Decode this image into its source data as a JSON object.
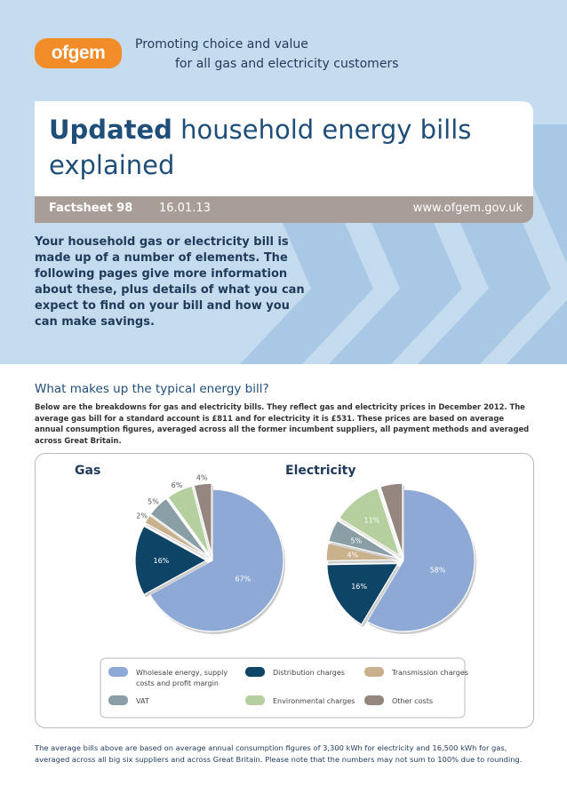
{
  "header": {
    "logo_text": "ofgem",
    "tagline_line1": "Promoting choice and value",
    "tagline_line2": "for all gas and electricity customers"
  },
  "title": {
    "bold": "Updated",
    "rest": " household energy bills explained"
  },
  "factsheet": {
    "label": "Factsheet 98",
    "date": "16.01.13",
    "url": "www.ofgem.gov.uk"
  },
  "intro": "Your household gas or electricity bill is made up of a number of elements. The following pages give more information about these, plus details of what you can expect to find on your bill and how you can make savings.",
  "section": {
    "heading": "What makes up the typical energy bill?",
    "body": "Below are the breakdowns for gas and electricity bills. They reflect gas and electricity prices in December 2012. The average gas bill for a standard account is £811 and for electricity it is £531. These prices are based on average annual consumption figures, averaged across all the former incumbent suppliers, all payment methods and averaged across Great Britain."
  },
  "colors": {
    "wholesale": "#8fa9d6",
    "distribution": "#0e4466",
    "transmission": "#c9b18c",
    "vat": "#8a9ea6",
    "environmental": "#b5cf9e",
    "other": "#958780",
    "hero_bg": "#c5dcef",
    "chevron": "#a9c8e6",
    "brand_orange": "#f28c28",
    "title_blue": "#1f4e79"
  },
  "chart_data": [
    {
      "type": "pie",
      "title": "Gas",
      "categories": [
        "Wholesale energy, supply costs and profit margin",
        "Distribution charges",
        "Transmission charges",
        "VAT",
        "Environmental charges",
        "Other costs"
      ],
      "values": [
        67,
        16,
        2,
        5,
        6,
        4
      ],
      "labels": [
        "67%",
        "16%",
        "2%",
        "5%",
        "6%",
        "4%"
      ]
    },
    {
      "type": "pie",
      "title": "Electricity",
      "categories": [
        "Wholesale energy, supply costs and profit margin",
        "Distribution charges",
        "Transmission charges",
        "VAT",
        "Environmental charges",
        "Other costs"
      ],
      "values": [
        58,
        16,
        4,
        5,
        11,
        5
      ],
      "labels": [
        "58%",
        "16%",
        "4%",
        "5%",
        "11%",
        "5%"
      ]
    }
  ],
  "legend": [
    {
      "key": "wholesale",
      "label_line1": "Wholesale energy, supply",
      "label_line2": "costs and profit margin"
    },
    {
      "key": "distribution",
      "label_line1": "Distribution charges",
      "label_line2": ""
    },
    {
      "key": "transmission",
      "label_line1": "Transmission charges",
      "label_line2": ""
    },
    {
      "key": "vat",
      "label_line1": "VAT",
      "label_line2": ""
    },
    {
      "key": "environmental",
      "label_line1": "Environmental charges",
      "label_line2": ""
    },
    {
      "key": "other",
      "label_line1": "Other costs",
      "label_line2": ""
    }
  ],
  "footnote": "The average bills above are based on average annual consumption figures of 3,300 kWh for electricity and 16,500 kWh for gas, averaged across all big six suppliers and across Great Britain. Please note that the numbers may not sum to 100% due to rounding."
}
